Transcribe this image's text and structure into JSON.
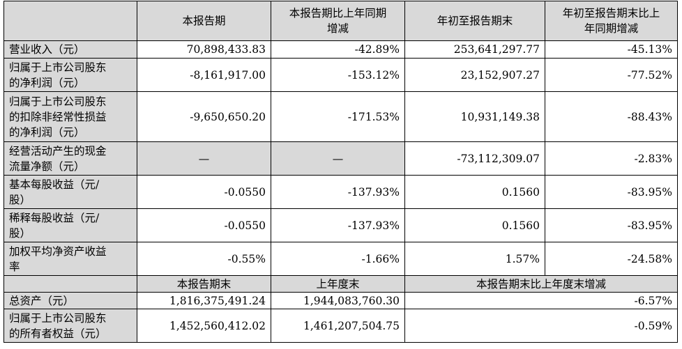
{
  "header": {
    "col1": "本报告期",
    "col2_line1": "本报告期比上年同期",
    "col2_line2": "增减",
    "col3": "年初至报告期末",
    "col4_line1": "年初至报告期末比上",
    "col4_line2": "年同期增减"
  },
  "rows": [
    {
      "label_lines": [
        "营业收入（元）"
      ],
      "current": "70,898,433.83",
      "yoy": "-42.89%",
      "ytd": "253,641,297.77",
      "ytd_yoy": "-45.13%"
    },
    {
      "label_lines": [
        "归属于上市公司股东",
        "的净利润（元）"
      ],
      "current": "-8,161,917.00",
      "yoy": "-153.12%",
      "ytd": "23,152,907.27",
      "ytd_yoy": "-77.52%"
    },
    {
      "label_lines": [
        "归属于上市公司股东",
        "的扣除非经常性损益",
        "的净利润（元）"
      ],
      "current": "-9,650,650.20",
      "yoy": "-171.53%",
      "ytd": "10,931,149.38",
      "ytd_yoy": "-88.43%"
    },
    {
      "label_lines": [
        "经营活动产生的现金",
        "流量净额（元）"
      ],
      "current": "—",
      "yoy": "—",
      "ytd": "-73,112,309.07",
      "ytd_yoy": "-2.83%"
    },
    {
      "label_lines": [
        "基本每股收益（元/",
        "股）"
      ],
      "current": "-0.0550",
      "yoy": "-137.93%",
      "ytd": "0.1560",
      "ytd_yoy": "-83.95%"
    },
    {
      "label_lines": [
        "稀释每股收益（元/",
        "股）"
      ],
      "current": "-0.0550",
      "yoy": "-137.93%",
      "ytd": "0.1560",
      "ytd_yoy": "-83.95%"
    },
    {
      "label_lines": [
        "加权平均净资产收益",
        "率"
      ],
      "current": "-0.55%",
      "yoy": "-1.66%",
      "ytd": "1.57%",
      "ytd_yoy": "-24.58%"
    }
  ],
  "header2": {
    "col1": "本报告期末",
    "col2": "上年度末",
    "col3": "本报告期末比上年度末增减"
  },
  "rows2": [
    {
      "label_lines": [
        "总资产（元）"
      ],
      "period_end": "1,816,375,491.24",
      "prior_year_end": "1,944,083,760.30",
      "change": "-6.57%"
    },
    {
      "label_lines": [
        "归属于上市公司股东",
        "的所有者权益（元）"
      ],
      "period_end": "1,452,560,412.02",
      "prior_year_end": "1,461,207,504.75",
      "change": "-0.59%"
    }
  ]
}
